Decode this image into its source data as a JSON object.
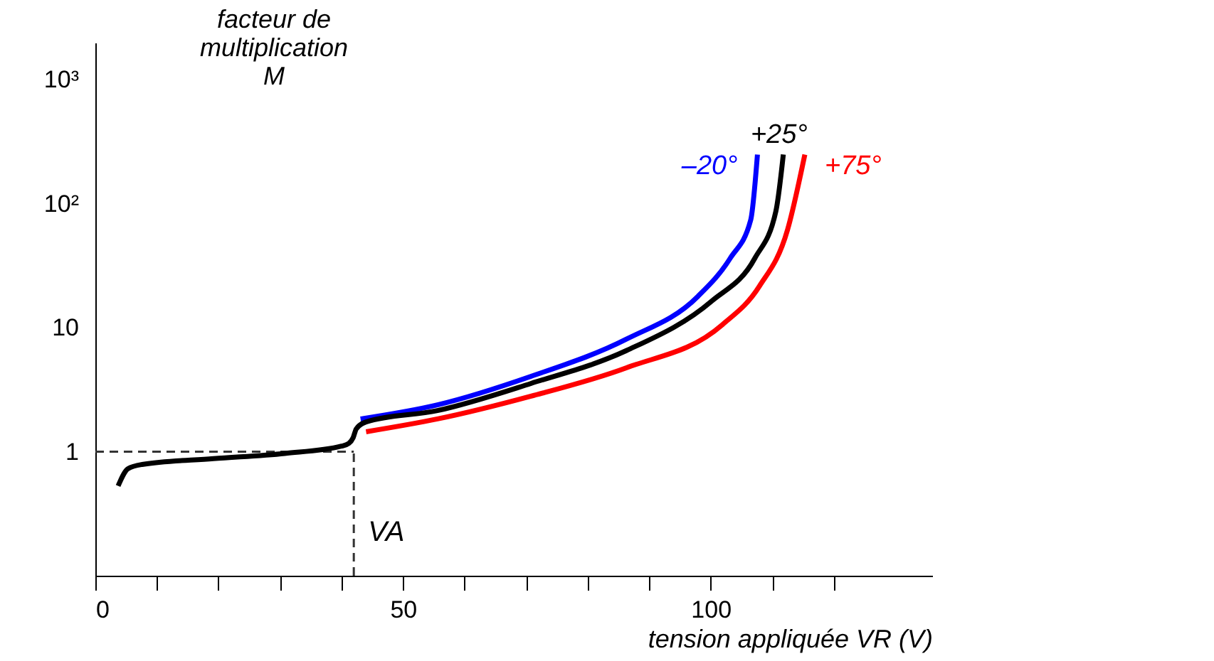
{
  "chart_data": {
    "type": "line",
    "xlabel": "tension appliquée VR (V)",
    "ylabel": "facteur de\nmultiplication\nM",
    "log": "y",
    "grid": false,
    "legend": false,
    "line_style": "solid",
    "marker": "none",
    "xlim": [
      0,
      136
    ],
    "ylim": [
      0.1,
      2000
    ],
    "xticks": [
      0,
      {
        "value": 10,
        "label": null
      },
      {
        "value": 20,
        "label": null
      },
      {
        "value": 30,
        "label": null
      },
      {
        "value": 40,
        "label": null
      },
      50,
      {
        "value": 60,
        "label": null
      },
      {
        "value": 70,
        "label": null
      },
      {
        "value": 80,
        "label": null
      },
      {
        "value": 90,
        "label": null
      },
      100,
      {
        "value": 110,
        "label": null
      },
      {
        "value": 120,
        "label": null
      }
    ],
    "yticks": [
      1,
      10,
      {
        "value": 100,
        "label": "10²"
      },
      {
        "value": 1000,
        "label": "10³"
      }
    ],
    "series": [
      {
        "name": "–20°",
        "color": "#0000ff",
        "x": [
          43.1,
          55.6,
          70.8,
          86.3,
          97.9,
          103.2,
          106.5,
          107.6
        ],
        "values": [
          1.84,
          2.39,
          4.06,
          8.1,
          17.9,
          36.6,
          74,
          250
        ]
      },
      {
        "name": "+25°",
        "color": "#000000",
        "x": [
          3.7,
          5.3,
          7.6,
          19.2,
          30.8,
          40,
          41.2,
          41.9,
          42.4,
          44,
          55.6,
          70.8,
          86.3,
          100.2,
          107.2,
          110.6,
          111.8
        ],
        "values": [
          0.53,
          0.73,
          0.79,
          0.88,
          0.97,
          1.11,
          1.17,
          1.3,
          1.53,
          1.74,
          2.15,
          3.56,
          6.55,
          16.5,
          36.6,
          87.6,
          250
        ]
      },
      {
        "name": "+75°",
        "color": "#ff0000",
        "x": [
          44,
          55.6,
          70.8,
          86.3,
          101.9,
          107.9,
          112.5,
          115.3
        ],
        "values": [
          1.45,
          1.84,
          2.81,
          4.76,
          10.6,
          21.6,
          62.1,
          250
        ]
      }
    ],
    "ref_lines": [
      {
        "axis": "y",
        "value": 1,
        "line_style": "dashed",
        "color": "#333333"
      },
      {
        "axis": "x",
        "value": 42,
        "label": "VA",
        "line_style": "dashed",
        "color": "#333333"
      }
    ]
  }
}
